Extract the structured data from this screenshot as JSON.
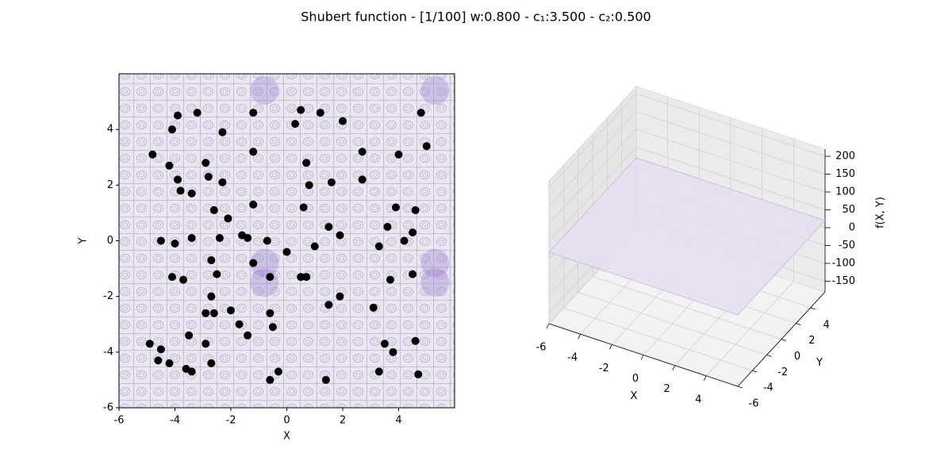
{
  "title": "Shubert function - [1/100] w:0.800 - c₁:3.500 - c₂:0.500",
  "chart_data": [
    {
      "type": "scatter",
      "xlabel": "X",
      "ylabel": "Y",
      "xlim": [
        -6,
        6
      ],
      "ylim": [
        -6,
        6
      ],
      "xticks": [
        -6,
        -4,
        -2,
        0,
        2,
        4
      ],
      "yticks": [
        -6,
        -4,
        -2,
        0,
        2,
        4
      ],
      "color": "#000000",
      "x": [
        -3.9,
        -3.2,
        -4.1,
        -1.2,
        0.3,
        0.5,
        1.2,
        2.0,
        4.8,
        -2.3,
        -1.2,
        -4.8,
        -4.2,
        -2.9,
        0.7,
        2.7,
        2.7,
        4.0,
        5.0,
        -3.9,
        -3.8,
        -3.4,
        -2.8,
        -2.3,
        0.8,
        1.6,
        -1.2,
        0.6,
        -2.6,
        -2.1,
        1.5,
        3.9,
        4.6,
        4.5,
        3.6,
        1.9,
        -4.5,
        -4.0,
        -3.4,
        -2.4,
        -1.6,
        -1.4,
        -0.7,
        0.0,
        1.0,
        3.3,
        4.2,
        -2.7,
        -1.2,
        -0.6,
        0.5,
        0.7,
        -4.1,
        -3.7,
        -2.5,
        -2.7,
        3.7,
        4.5,
        1.9,
        1.5,
        3.1,
        -2.9,
        -2.6,
        -2.0,
        -1.7,
        -0.6,
        -0.5,
        -1.4,
        -3.5,
        -4.9,
        -4.5,
        -2.9,
        3.5,
        3.8,
        4.6,
        -4.6,
        -4.2,
        -3.6,
        -3.4,
        -2.7,
        -0.3,
        -0.6,
        1.4,
        3.3,
        4.7
      ],
      "y": [
        4.5,
        4.6,
        4.0,
        4.6,
        4.2,
        4.7,
        4.6,
        4.3,
        4.6,
        3.9,
        3.2,
        3.1,
        2.7,
        2.8,
        2.8,
        2.2,
        3.2,
        3.1,
        3.4,
        2.2,
        1.8,
        1.7,
        2.3,
        2.1,
        2.0,
        2.1,
        1.3,
        1.2,
        1.1,
        0.8,
        0.5,
        1.2,
        1.1,
        0.3,
        0.5,
        0.2,
        0.0,
        -0.1,
        0.1,
        0.1,
        0.2,
        0.1,
        0.0,
        -0.4,
        -0.2,
        -0.2,
        0.0,
        -0.7,
        -0.8,
        -1.3,
        -1.3,
        -1.3,
        -1.3,
        -1.4,
        -1.2,
        -2.0,
        -1.4,
        -1.2,
        -2.0,
        -2.3,
        -2.4,
        -2.6,
        -2.6,
        -2.5,
        -3.0,
        -2.6,
        -3.1,
        -3.4,
        -3.4,
        -3.7,
        -3.9,
        -3.7,
        -3.7,
        -4.0,
        -3.6,
        -4.3,
        -4.4,
        -4.6,
        -4.7,
        -4.4,
        -4.7,
        -5.0,
        -5.0,
        -4.7,
        -4.8
      ]
    },
    {
      "type": "surface3d",
      "xlabel": "X",
      "ylabel": "Y",
      "zlabel": "f(X, Y)",
      "xlim": [
        -6,
        6
      ],
      "ylim": [
        -6,
        6
      ],
      "zlim": [
        -180,
        220
      ],
      "xticks": [
        -6,
        -4,
        -2,
        0,
        2,
        4
      ],
      "yticks": [
        -6,
        -4,
        -2,
        0,
        2,
        4
      ],
      "zticks": [
        -150,
        -100,
        -50,
        0,
        50,
        100,
        150,
        200
      ]
    }
  ]
}
